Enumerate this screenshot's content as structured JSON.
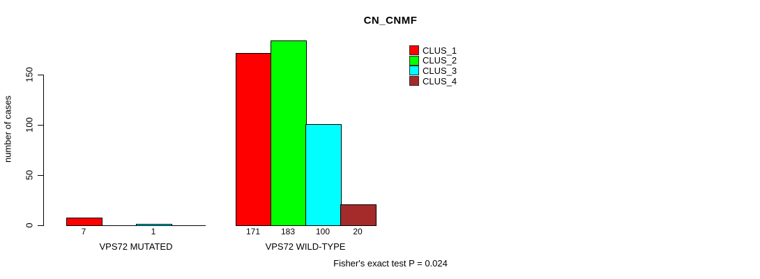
{
  "chart_data": {
    "type": "bar",
    "title": "CN_CNMF",
    "ylabel": "number of cases",
    "yticks": [
      0,
      50,
      100,
      150
    ],
    "ylim": [
      0,
      190
    ],
    "grid": false,
    "legend_position": "inside-top-right",
    "categories": [
      "VPS72 MUTATED",
      "VPS72 WILD-TYPE"
    ],
    "series": [
      {
        "name": "CLUS_1",
        "color": "#ff0000",
        "values": [
          7,
          171
        ]
      },
      {
        "name": "CLUS_2",
        "color": "#00ff00",
        "values": [
          0,
          183
        ]
      },
      {
        "name": "CLUS_3",
        "color": "#00ffff",
        "values": [
          1,
          100
        ]
      },
      {
        "name": "CLUS_4",
        "color": "#a52a2a",
        "values": [
          0,
          20
        ]
      }
    ],
    "bar_value_labels": [
      [
        "7",
        "",
        "1",
        ""
      ],
      [
        "171",
        "183",
        "100",
        "20"
      ]
    ],
    "annotation": "Fisher's exact test P = 0.024"
  }
}
